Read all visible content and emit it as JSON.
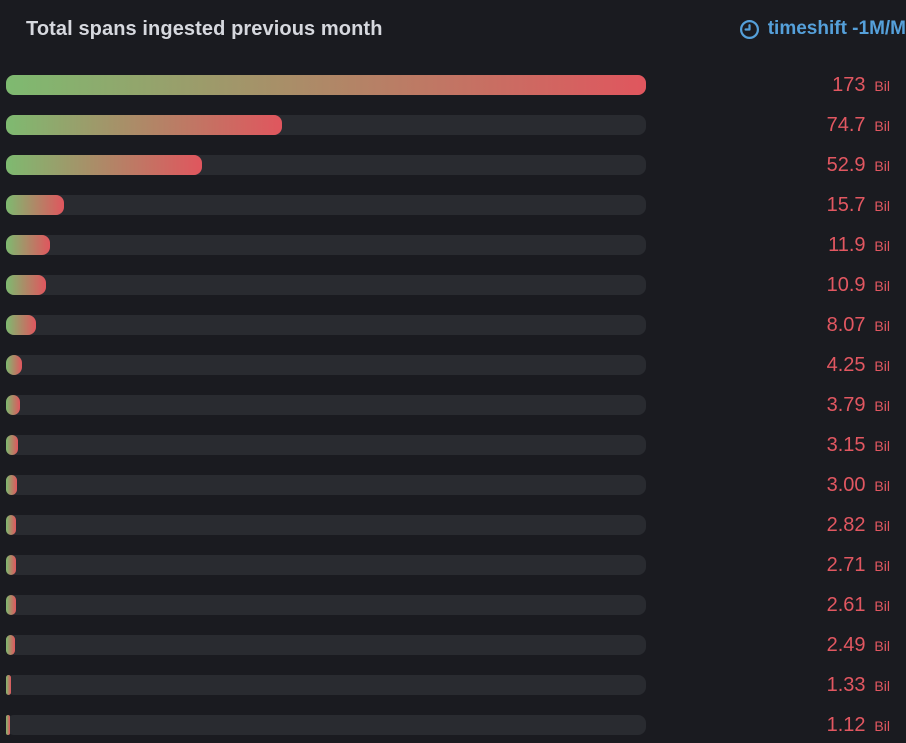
{
  "panel": {
    "title": "Total spans ingested previous month"
  },
  "timeshift": {
    "label": "timeshift -1M/M"
  },
  "colors": {
    "background": "#1a1b20",
    "track": "#292b30",
    "bar_gradient_start": "#7eba70",
    "bar_gradient_end": "#e0565e",
    "value_text": "#e25761",
    "title_text": "#d6d8de",
    "timeshift_text": "#55a0da"
  },
  "chart_data": {
    "type": "bar",
    "orientation": "horizontal",
    "title": "Total spans ingested previous month",
    "unit": "Bil",
    "suffix": "Bil",
    "max": 173,
    "xlim": [
      0,
      173
    ],
    "legend": "none",
    "grid": false,
    "values": [
      173,
      74.7,
      52.9,
      15.7,
      11.9,
      10.9,
      8.07,
      4.25,
      3.79,
      3.15,
      3.0,
      2.82,
      2.71,
      2.61,
      2.49,
      1.33,
      1.12
    ],
    "value_labels": [
      "173",
      "74.7",
      "52.9",
      "15.7",
      "11.9",
      "10.9",
      "8.07",
      "4.25",
      "3.79",
      "3.15",
      "3.00",
      "2.82",
      "2.71",
      "2.61",
      "2.49",
      "1.33",
      "1.12"
    ]
  }
}
